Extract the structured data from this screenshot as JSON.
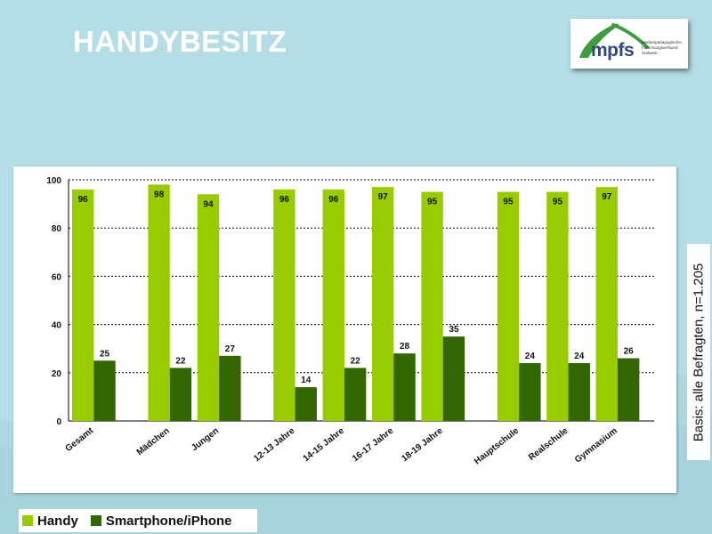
{
  "slide": {
    "title": "HANDYBESITZ",
    "background": "#b4dde6"
  },
  "logo": {
    "name": "mpfs",
    "subtitle_lines": [
      "Medienpädagogischer",
      "Forschungsverbund",
      "Südwest"
    ],
    "accent": "#3f9b3f"
  },
  "basis_note": "Basis: alle Befragten, n=1.205",
  "legend": [
    {
      "label": "Handy",
      "color": "#99cc00"
    },
    {
      "label": "Smartphone/iPhone",
      "color": "#336600"
    }
  ],
  "chart_data": {
    "type": "bar",
    "title": "",
    "xlabel": "",
    "ylabel": "",
    "ylim": [
      0,
      100
    ],
    "yticks": [
      0,
      20,
      40,
      60,
      80,
      100
    ],
    "grid": true,
    "categories": [
      "Gesamt",
      "Mädchen",
      "Jungen",
      "12-13 Jahre",
      "14-15 Jahre",
      "16-17 Jahre",
      "18-19 Jahre",
      "Hauptschule",
      "Realschule",
      "Gymnasium"
    ],
    "series": [
      {
        "name": "Handy",
        "color": "#99cc00",
        "values": [
          96,
          98,
          94,
          96,
          96,
          97,
          95,
          95,
          95,
          97
        ]
      },
      {
        "name": "Smartphone/iPhone",
        "color": "#336600",
        "values": [
          25,
          22,
          27,
          14,
          22,
          28,
          35,
          24,
          24,
          26
        ]
      }
    ],
    "groups": [
      [
        0
      ],
      [
        1,
        2
      ],
      [
        3,
        4,
        5,
        6
      ],
      [
        7,
        8,
        9
      ]
    ]
  }
}
